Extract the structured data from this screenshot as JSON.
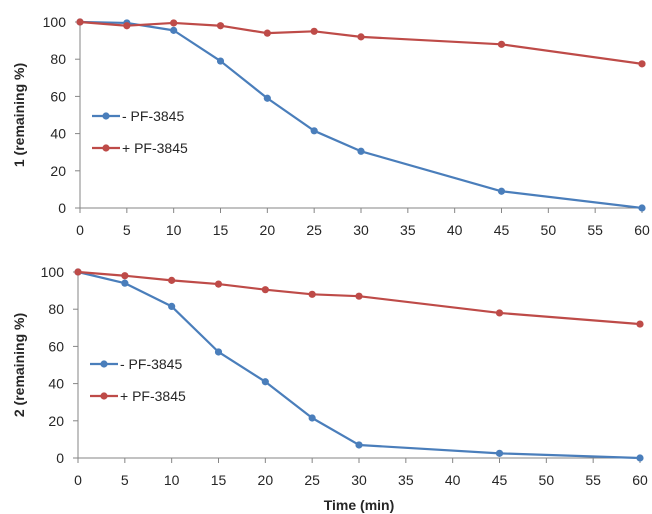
{
  "chart_data": [
    {
      "type": "line",
      "ylabel": "1 (remaining %)",
      "xlabel": "",
      "xlim": [
        0,
        60
      ],
      "ylim": [
        0,
        100
      ],
      "xticks": [
        0,
        5,
        10,
        15,
        20,
        25,
        30,
        35,
        40,
        45,
        50,
        55,
        60
      ],
      "yticks": [
        0,
        20,
        40,
        60,
        80,
        100
      ],
      "grid": false,
      "legend_position": "left",
      "series": [
        {
          "name": "- PF-3845",
          "color": "#4a7ebb",
          "x": [
            0,
            5,
            10,
            15,
            20,
            25,
            30,
            45,
            60
          ],
          "y": [
            100,
            99.5,
            95.5,
            79,
            59,
            41.5,
            30.5,
            9,
            0
          ]
        },
        {
          "name": "+ PF-3845",
          "color": "#be4b48",
          "x": [
            0,
            5,
            10,
            15,
            20,
            25,
            30,
            45,
            60
          ],
          "y": [
            100,
            98,
            99.5,
            98,
            94,
            95,
            92,
            88,
            77.5
          ]
        }
      ]
    },
    {
      "type": "line",
      "ylabel": "2 (remaining %)",
      "xlabel": "Time (min)",
      "xlim": [
        0,
        60
      ],
      "ylim": [
        0,
        100
      ],
      "xticks": [
        0,
        5,
        10,
        15,
        20,
        25,
        30,
        35,
        40,
        45,
        50,
        55,
        60
      ],
      "yticks": [
        0,
        20,
        40,
        60,
        80,
        100
      ],
      "grid": false,
      "legend_position": "left",
      "series": [
        {
          "name": "- PF-3845",
          "color": "#4a7ebb",
          "x": [
            0,
            5,
            10,
            15,
            20,
            25,
            30,
            45,
            60
          ],
          "y": [
            100,
            94,
            81.5,
            57,
            41,
            21.5,
            7,
            2.5,
            0
          ]
        },
        {
          "name": "+ PF-3845",
          "color": "#be4b48",
          "x": [
            0,
            5,
            10,
            15,
            20,
            25,
            30,
            45,
            60
          ],
          "y": [
            100,
            98,
            95.5,
            93.5,
            90.5,
            88,
            87,
            78,
            72
          ]
        }
      ]
    }
  ]
}
